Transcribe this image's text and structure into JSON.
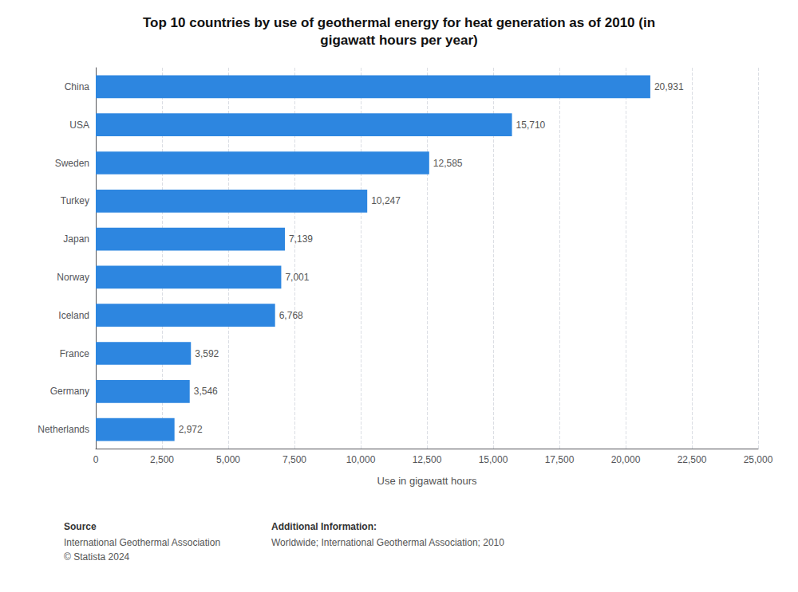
{
  "chart_data": {
    "type": "bar",
    "orientation": "horizontal",
    "title": "Top 10 countries by use of geothermal energy for heat generation as of 2010 (in\ngigawatt hours per year)",
    "xlabel": "Use in gigawatt hours",
    "categories": [
      "Netherlands",
      "Germany",
      "France",
      "Iceland",
      "Norway",
      "Japan",
      "Turkey",
      "Sweden",
      "USA",
      "China"
    ],
    "values": [
      2972,
      3546,
      3592,
      6768,
      7001,
      7139,
      10247,
      12585,
      15710,
      20931
    ],
    "value_labels": [
      "2,972",
      "3,546",
      "3,592",
      "6,768",
      "7,001",
      "7,139",
      "10,247",
      "12,585",
      "15,710",
      "20,931"
    ],
    "color": "#2d86e0",
    "xlim": [
      0,
      25000
    ],
    "xticks": [
      0,
      {
        "value": 2500,
        "label": "2,500"
      },
      {
        "value": 5000,
        "label": "5,000"
      },
      {
        "value": 7500,
        "label": "7,500"
      },
      {
        "value": 10000,
        "label": "10,000"
      },
      {
        "value": 12500,
        "label": "12,500"
      },
      {
        "value": 15000,
        "label": "15,000"
      },
      {
        "value": 17500,
        "label": "17,500"
      },
      {
        "value": 20000,
        "label": "20,000"
      },
      {
        "value": 22500,
        "label": "22,500"
      },
      {
        "value": 25000,
        "label": "25,000"
      }
    ],
    "grid": true,
    "data_labels": true,
    "annotations": [
      "Source",
      "International Geothermal Association\n© Statista 2024",
      "Additional Information:",
      "Worldwide; International Geothermal Association; 2010"
    ]
  }
}
